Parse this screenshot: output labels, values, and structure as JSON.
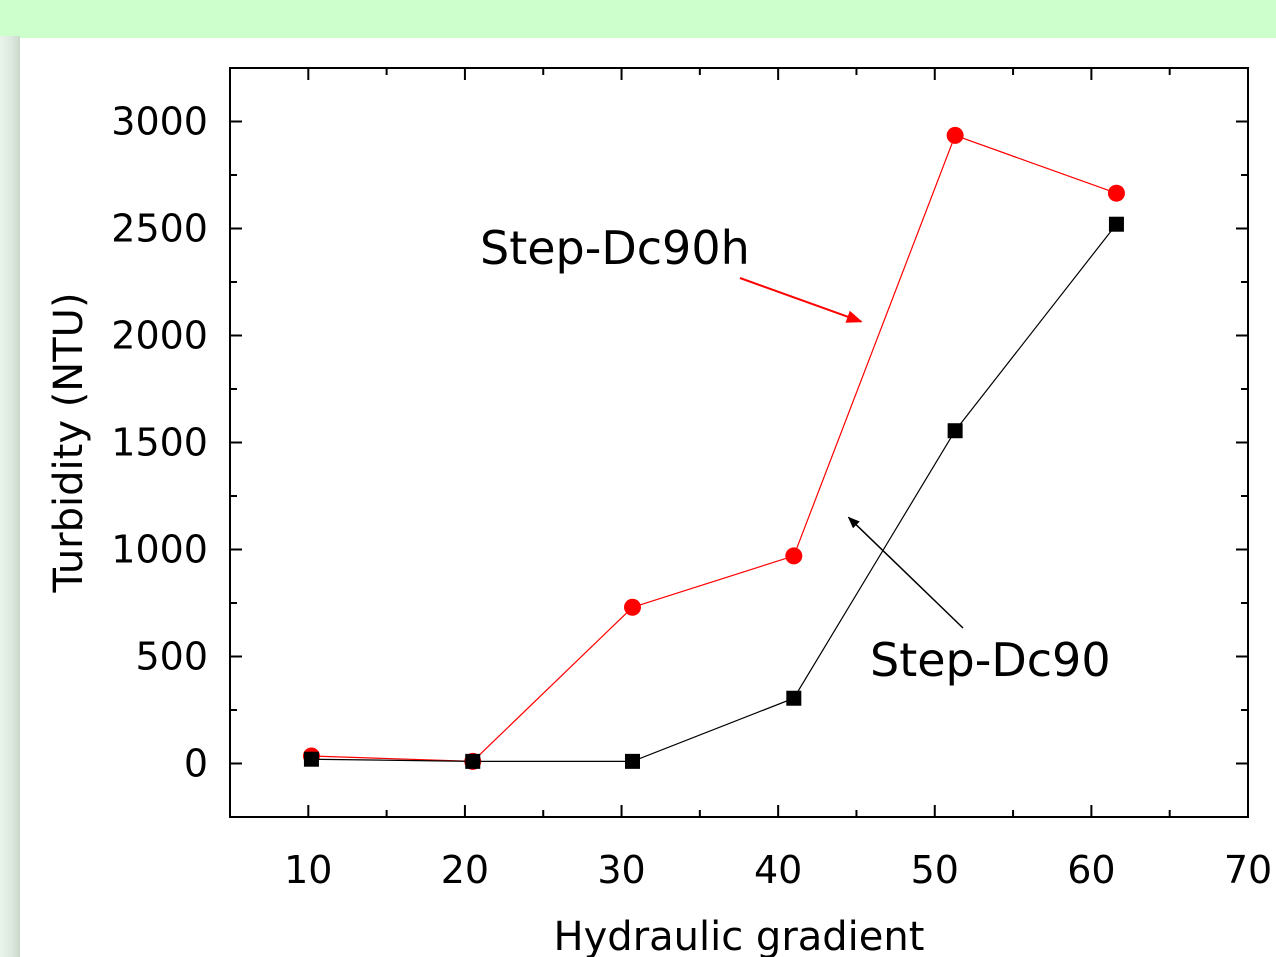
{
  "chart_data": {
    "type": "line",
    "xlabel": "Hydraulic gradient",
    "ylabel": "Turbidity (NTU)",
    "xlim": [
      5,
      70
    ],
    "ylim": [
      -250,
      3250
    ],
    "xticks": [
      10,
      20,
      30,
      40,
      50,
      60,
      70
    ],
    "yticks": [
      0,
      500,
      1000,
      1500,
      2000,
      2500,
      3000
    ],
    "grid": false,
    "series": [
      {
        "name": "Step-Dc90h",
        "color": "#ff0000",
        "marker": "circle",
        "x": [
          10.2,
          20.5,
          30.7,
          41.0,
          51.3,
          61.6
        ],
        "y": [
          35,
          10,
          730,
          970,
          2935,
          2665
        ]
      },
      {
        "name": "Step-Dc90",
        "color": "#000000",
        "marker": "square",
        "x": [
          10.2,
          20.5,
          30.7,
          41.0,
          51.3,
          61.6
        ],
        "y": [
          20,
          10,
          10,
          305,
          1555,
          2520
        ]
      }
    ],
    "annotations": [
      {
        "text": "Step-Dc90h",
        "series": "Step-Dc90h",
        "arrow_to": [
          45.3,
          2065
        ]
      },
      {
        "text": "Step-Dc90",
        "series": "Step-Dc90",
        "arrow_to": [
          44.5,
          1150
        ]
      }
    ]
  }
}
